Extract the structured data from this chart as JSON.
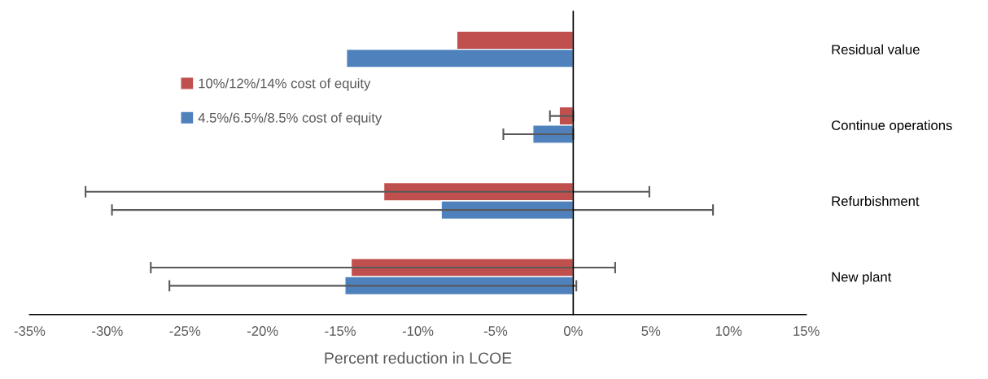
{
  "chart_data": {
    "type": "bar",
    "orientation": "horizontal",
    "xlabel": "Percent reduction in LCOE",
    "categories": [
      "Residual value",
      "Continue operations",
      "Refurbishment",
      "New plant"
    ],
    "series": [
      {
        "name": "10%/12%/14% cost of equity",
        "color": "#c0504d",
        "values": [
          -7.5,
          -0.9,
          -12.2,
          -14.3
        ],
        "errors": [
          null,
          [
            -1.5,
            0
          ],
          [
            -31.4,
            4.9
          ],
          [
            -27.2,
            2.7
          ]
        ]
      },
      {
        "name": "4.5%/6.5%/8.5% cost of equity",
        "color": "#4f81bd",
        "values": [
          -14.6,
          -2.6,
          -8.5,
          -14.7
        ],
        "errors": [
          null,
          [
            -4.5,
            0
          ],
          [
            -29.7,
            9.0
          ],
          [
            -26.0,
            0.2
          ]
        ]
      }
    ],
    "xlim": [
      -35,
      15
    ],
    "xticks": [
      {
        "value": -35,
        "label": "-35%"
      },
      {
        "value": -30,
        "label": "-30%"
      },
      {
        "value": -25,
        "label": "-25%"
      },
      {
        "value": -20,
        "label": "-20%"
      },
      {
        "value": -15,
        "label": "-15%"
      },
      {
        "value": -10,
        "label": "-10%"
      },
      {
        "value": -5,
        "label": "-5%"
      },
      {
        "value": 0,
        "label": "0%"
      },
      {
        "value": 5,
        "label": "5%"
      },
      {
        "value": 10,
        "label": "10%"
      },
      {
        "value": 15,
        "label": "15%"
      }
    ],
    "legend": "top left"
  }
}
